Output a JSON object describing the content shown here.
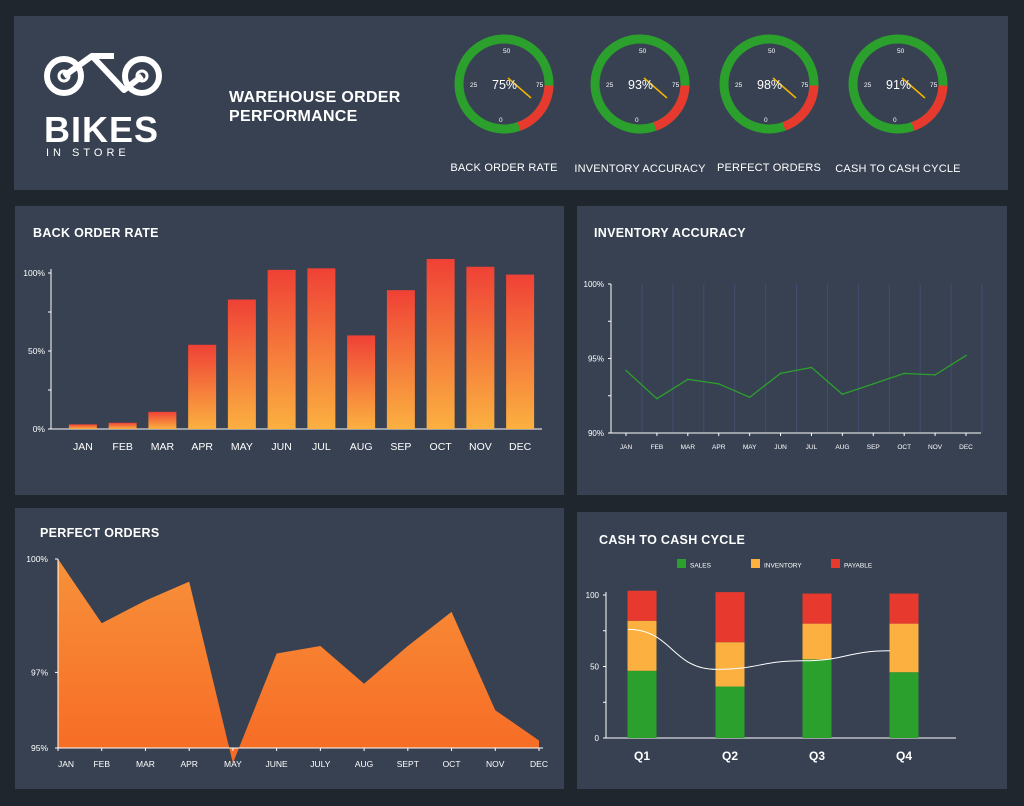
{
  "header": {
    "logo_text": "BIKES",
    "logo_subtext": "IN STORE",
    "title_line1": "WAREHOUSE ORDER",
    "title_line2": "PERFORMANCE",
    "gauges": [
      {
        "label": "BACK ORDER RATE",
        "value_text": "75%",
        "value": 75
      },
      {
        "label": "INVENTORY ACCURACY",
        "value_text": "93%",
        "value": 93
      },
      {
        "label": "PERFECT ORDERS",
        "value_text": "98%",
        "value": 98
      },
      {
        "label": "CASH TO CASH CYCLE",
        "value_text": "91%",
        "value": 91
      }
    ],
    "gauge_ticks": [
      "0",
      "25",
      "50",
      "75"
    ]
  },
  "colors": {
    "panel": "#374151",
    "background": "#1f262e",
    "green": "#2ca02c",
    "orange": "#fbb040",
    "red": "#e8392f",
    "area_orange": "#f7732a"
  },
  "chart_data": [
    {
      "id": "back_order_rate",
      "type": "bar",
      "title": "BACK ORDER RATE",
      "categories": [
        "JAN",
        "FEB",
        "MAR",
        "APR",
        "MAY",
        "JUN",
        "JUL",
        "AUG",
        "SEP",
        "OCT",
        "NOV",
        "DEC"
      ],
      "values": [
        3,
        4,
        11,
        54,
        83,
        102,
        103,
        60,
        89,
        109,
        104,
        99
      ],
      "yticks": [
        "0%",
        "50%",
        "100%"
      ],
      "ylim": [
        0,
        100
      ],
      "grid": false
    },
    {
      "id": "inventory_accuracy",
      "type": "line",
      "title": "INVENTORY ACCURACY",
      "categories": [
        "JAN",
        "FEB",
        "MAR",
        "APR",
        "MAY",
        "JUN",
        "JUL",
        "AUG",
        "SEP",
        "OCT",
        "NOV",
        "DEC"
      ],
      "values": [
        94.2,
        92.3,
        93.6,
        93.3,
        92.4,
        94.0,
        94.4,
        92.6,
        93.3,
        94.0,
        93.9,
        95.2
      ],
      "yticks": [
        "90%",
        "95%",
        "100%"
      ],
      "ylim": [
        90,
        100
      ],
      "grid": true
    },
    {
      "id": "perfect_orders",
      "type": "area",
      "title": "PERFECT ORDERS",
      "categories": [
        "JAN",
        "FEB",
        "MAR",
        "APR",
        "MAY",
        "JUNE",
        "JULY",
        "AUG",
        "SEPT",
        "OCT",
        "NOV",
        "DEC"
      ],
      "values": [
        100.0,
        98.3,
        98.9,
        99.4,
        94.6,
        97.5,
        97.7,
        96.7,
        97.7,
        98.6,
        96.0,
        95.2
      ],
      "yticks": [
        "95%",
        "97%",
        "100%"
      ],
      "ylim": [
        95,
        100
      ],
      "grid": false
    },
    {
      "id": "cash_to_cash_cycle",
      "type": "bar",
      "stacked": true,
      "title": "CASH TO CASH CYCLE",
      "categories": [
        "Q1",
        "Q2",
        "Q3",
        "Q4"
      ],
      "series": [
        {
          "name": "SALES",
          "values": [
            47,
            36,
            55,
            46
          ]
        },
        {
          "name": "INVENTORY",
          "values": [
            35,
            31,
            25,
            34
          ]
        },
        {
          "name": "PAYABLE",
          "values": [
            21,
            35,
            21,
            21
          ]
        }
      ],
      "trend_line": [
        76,
        48,
        54,
        61
      ],
      "yticks": [
        "0",
        "50",
        "100"
      ],
      "ylim": [
        0,
        100
      ],
      "legend": "top"
    }
  ]
}
